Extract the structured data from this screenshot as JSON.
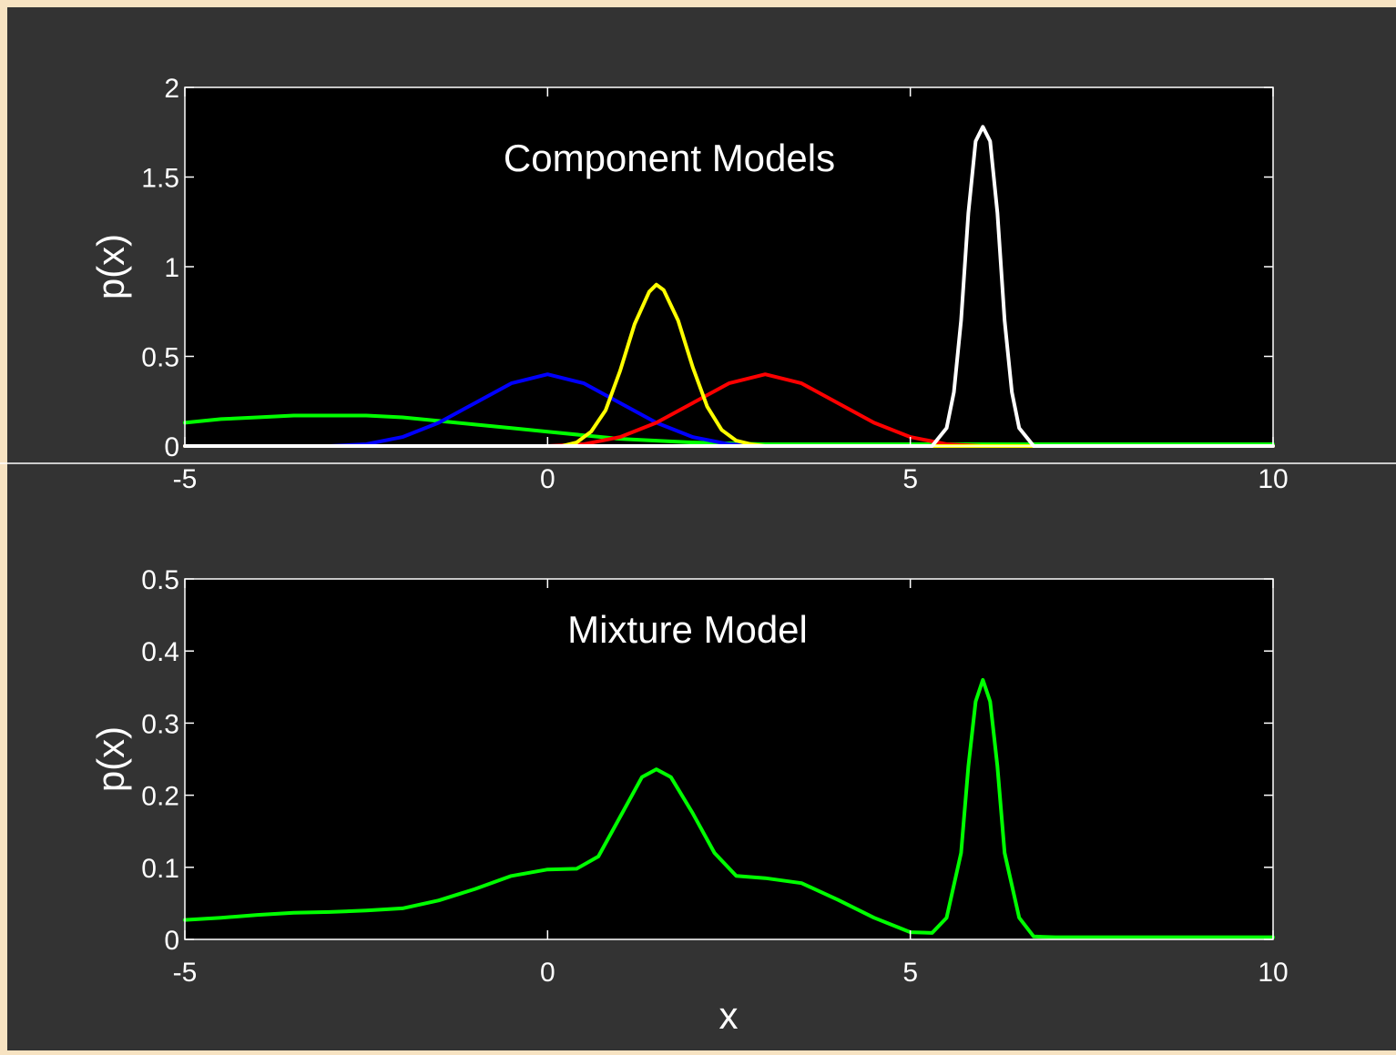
{
  "colors": {
    "slide_border": "#f7e3c2",
    "background": "#333333",
    "plot_area": "#000000",
    "axis": "#ffffff",
    "text": "#ffffff"
  },
  "chart_data": [
    {
      "type": "line",
      "title": "Component Models",
      "xlabel": "",
      "ylabel": "p(x)",
      "xlim": [
        -5,
        10
      ],
      "ylim": [
        0,
        2
      ],
      "xticks": [
        -5,
        0,
        5,
        10
      ],
      "yticks": [
        0,
        0.5,
        1,
        1.5,
        2
      ],
      "ytick_labels": [
        "0",
        "0.5",
        "1",
        "1.5",
        "2"
      ],
      "grid": false,
      "series": [
        {
          "color": "#00ff00",
          "x": [
            -5,
            -4.5,
            -4,
            -3.5,
            -3,
            -2.5,
            -2,
            -1.5,
            -1,
            -0.5,
            0,
            0.5,
            1,
            1.5,
            2,
            3,
            4,
            5,
            6,
            7,
            8,
            9,
            10
          ],
          "y": [
            0.13,
            0.15,
            0.16,
            0.17,
            0.17,
            0.17,
            0.16,
            0.14,
            0.12,
            0.1,
            0.08,
            0.06,
            0.04,
            0.03,
            0.02,
            0.01,
            0.01,
            0.01,
            0.01,
            0.01,
            0.01,
            0.01,
            0.01
          ]
        },
        {
          "color": "#0000ff",
          "x": [
            -5,
            -3,
            -2.5,
            -2,
            -1.5,
            -1,
            -0.5,
            0,
            0.5,
            1,
            1.5,
            2,
            2.5,
            3,
            4,
            5,
            6,
            10
          ],
          "y": [
            0,
            0,
            0.01,
            0.05,
            0.13,
            0.24,
            0.35,
            0.4,
            0.35,
            0.24,
            0.13,
            0.05,
            0.01,
            0,
            0,
            0,
            0,
            0
          ]
        },
        {
          "color": "#ff0000",
          "x": [
            -5,
            0,
            0.5,
            1,
            1.5,
            2,
            2.5,
            3,
            3.5,
            4,
            4.5,
            5,
            5.5,
            6,
            10
          ],
          "y": [
            0,
            0,
            0.01,
            0.05,
            0.13,
            0.24,
            0.35,
            0.4,
            0.35,
            0.24,
            0.13,
            0.05,
            0.01,
            0,
            0
          ]
        },
        {
          "color": "#ffff00",
          "x": [
            -5,
            0.2,
            0.4,
            0.6,
            0.8,
            1.0,
            1.2,
            1.4,
            1.5,
            1.6,
            1.8,
            2.0,
            2.2,
            2.4,
            2.6,
            2.8,
            3,
            10
          ],
          "y": [
            0,
            0,
            0.02,
            0.08,
            0.2,
            0.42,
            0.68,
            0.86,
            0.9,
            0.87,
            0.7,
            0.44,
            0.22,
            0.09,
            0.03,
            0.01,
            0,
            0
          ]
        },
        {
          "color": "#ffffff",
          "x": [
            -5,
            5.3,
            5.5,
            5.6,
            5.7,
            5.8,
            5.9,
            6.0,
            6.1,
            6.2,
            6.3,
            6.4,
            6.5,
            6.7,
            10
          ],
          "y": [
            0,
            0,
            0.1,
            0.3,
            0.7,
            1.3,
            1.7,
            1.78,
            1.7,
            1.3,
            0.7,
            0.3,
            0.1,
            0,
            0
          ]
        }
      ]
    },
    {
      "type": "line",
      "title": "Mixture Model",
      "xlabel": "x",
      "ylabel": "p(x)",
      "xlim": [
        -5,
        10
      ],
      "ylim": [
        0,
        0.5
      ],
      "xticks": [
        -5,
        0,
        5,
        10
      ],
      "yticks": [
        0,
        0.1,
        0.2,
        0.3,
        0.4,
        0.5
      ],
      "ytick_labels": [
        "0",
        "0.1",
        "0.2",
        "0.3",
        "0.4",
        "0.5"
      ],
      "grid": false,
      "series": [
        {
          "color": "#00ff00",
          "x": [
            -5,
            -4.5,
            -4,
            -3.5,
            -3,
            -2.5,
            -2,
            -1.5,
            -1,
            -0.5,
            0,
            0.4,
            0.7,
            1.0,
            1.3,
            1.5,
            1.7,
            2.0,
            2.3,
            2.6,
            3,
            3.5,
            4,
            4.5,
            5,
            5.3,
            5.5,
            5.7,
            5.8,
            5.9,
            6.0,
            6.1,
            6.2,
            6.3,
            6.5,
            6.7,
            7,
            8,
            9,
            10
          ],
          "y": [
            0.027,
            0.03,
            0.034,
            0.037,
            0.038,
            0.04,
            0.043,
            0.054,
            0.07,
            0.088,
            0.097,
            0.098,
            0.115,
            0.17,
            0.225,
            0.236,
            0.225,
            0.175,
            0.12,
            0.088,
            0.085,
            0.078,
            0.055,
            0.03,
            0.01,
            0.009,
            0.03,
            0.12,
            0.24,
            0.33,
            0.36,
            0.33,
            0.24,
            0.12,
            0.03,
            0.004,
            0.003,
            0.003,
            0.003,
            0.003
          ]
        }
      ]
    }
  ]
}
